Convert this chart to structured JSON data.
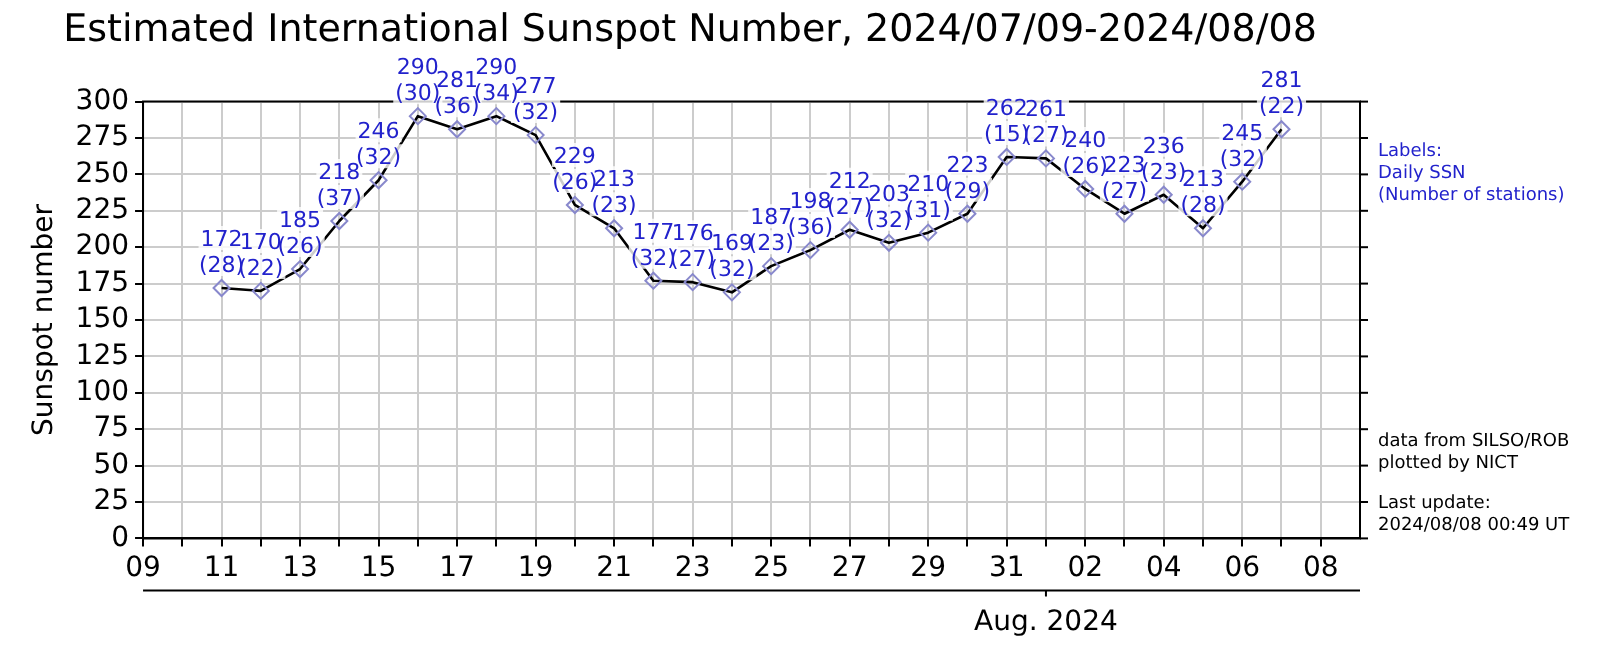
{
  "chart_data": {
    "type": "line",
    "title": "Estimated International Sunspot Number, 2024/07/09-2024/08/08",
    "ylabel": "Sunspot number",
    "x": [
      "2024-07-11",
      "2024-07-12",
      "2024-07-13",
      "2024-07-14",
      "2024-07-15",
      "2024-07-16",
      "2024-07-17",
      "2024-07-18",
      "2024-07-19",
      "2024-07-20",
      "2024-07-21",
      "2024-07-22",
      "2024-07-23",
      "2024-07-24",
      "2024-07-25",
      "2024-07-26",
      "2024-07-27",
      "2024-07-28",
      "2024-07-29",
      "2024-07-30",
      "2024-07-31",
      "2024-08-01",
      "2024-08-02",
      "2024-08-03",
      "2024-08-04",
      "2024-08-05",
      "2024-08-06",
      "2024-08-07"
    ],
    "series": [
      {
        "color": "#000000",
        "values": [
          172,
          170,
          185,
          218,
          246,
          290,
          281,
          290,
          277,
          229,
          213,
          177,
          176,
          169,
          187,
          198,
          212,
          203,
          210,
          223,
          262,
          261,
          240,
          223,
          236,
          213,
          245,
          281
        ],
        "value_labels": [
          "172\n(28)",
          "170\n(22)",
          "185\n(26)",
          "218\n(37)",
          "246\n(32)",
          "290\n(30)",
          "281\n(36)",
          "290\n(34)",
          "277\n(32)",
          "229\n(26)",
          "213\n(23)",
          "177\n(32)",
          "176\n(27)",
          "169\n(32)",
          "187\n(23)",
          "198\n(36)",
          "212\n(27)",
          "203\n(32)",
          "210\n(31)",
          "223\n(29)",
          "262\n(15)",
          "261\n(27)",
          "240\n(26)",
          "223\n(27)",
          "236\n(23)",
          "213\n(28)",
          "245\n(32)",
          "281\n(22)"
        ]
      }
    ],
    "xlim": [
      "2024-07-09",
      "2024-08-09"
    ],
    "xticks": [
      {
        "value": "2024-07-09",
        "label": "09"
      },
      {
        "value": "2024-07-10",
        "label": null
      },
      {
        "value": "2024-07-11",
        "label": "11"
      },
      {
        "value": "2024-07-12",
        "label": null
      },
      {
        "value": "2024-07-13",
        "label": "13"
      },
      {
        "value": "2024-07-14",
        "label": null
      },
      {
        "value": "2024-07-15",
        "label": "15"
      },
      {
        "value": "2024-07-16",
        "label": null
      },
      {
        "value": "2024-07-17",
        "label": "17"
      },
      {
        "value": "2024-07-18",
        "label": null
      },
      {
        "value": "2024-07-19",
        "label": "19"
      },
      {
        "value": "2024-07-20",
        "label": null
      },
      {
        "value": "2024-07-21",
        "label": "21"
      },
      {
        "value": "2024-07-22",
        "label": null
      },
      {
        "value": "2024-07-23",
        "label": "23"
      },
      {
        "value": "2024-07-24",
        "label": null
      },
      {
        "value": "2024-07-25",
        "label": "25"
      },
      {
        "value": "2024-07-26",
        "label": null
      },
      {
        "value": "2024-07-27",
        "label": "27"
      },
      {
        "value": "2024-07-28",
        "label": null
      },
      {
        "value": "2024-07-29",
        "label": "29"
      },
      {
        "value": "2024-07-30",
        "label": null
      },
      {
        "value": "2024-07-31",
        "label": "31"
      },
      {
        "value": "2024-08-01",
        "label": null
      },
      {
        "value": "2024-08-02",
        "label": "02"
      },
      {
        "value": "2024-08-03",
        "label": null
      },
      {
        "value": "2024-08-04",
        "label": "04"
      },
      {
        "value": "2024-08-05",
        "label": null
      },
      {
        "value": "2024-08-06",
        "label": "06"
      },
      {
        "value": "2024-08-07",
        "label": null
      },
      {
        "value": "2024-08-08",
        "label": "08"
      }
    ],
    "ylim": [
      0,
      300
    ],
    "yticks": [
      0,
      25,
      50,
      75,
      100,
      125,
      150,
      175,
      200,
      225,
      250,
      275,
      300
    ],
    "grid": true,
    "marker": "diamond",
    "line_style": "solid",
    "legend": false,
    "annotations": [
      {
        "text": "Aug. 2024",
        "x": "2024-08-01"
      },
      "Labels:\nDaily SSN\n(Number of stations)",
      "data from SILSO/ROB\nplotted by NICT",
      "Last update:\n2024/08/08 00:49 UT"
    ]
  }
}
